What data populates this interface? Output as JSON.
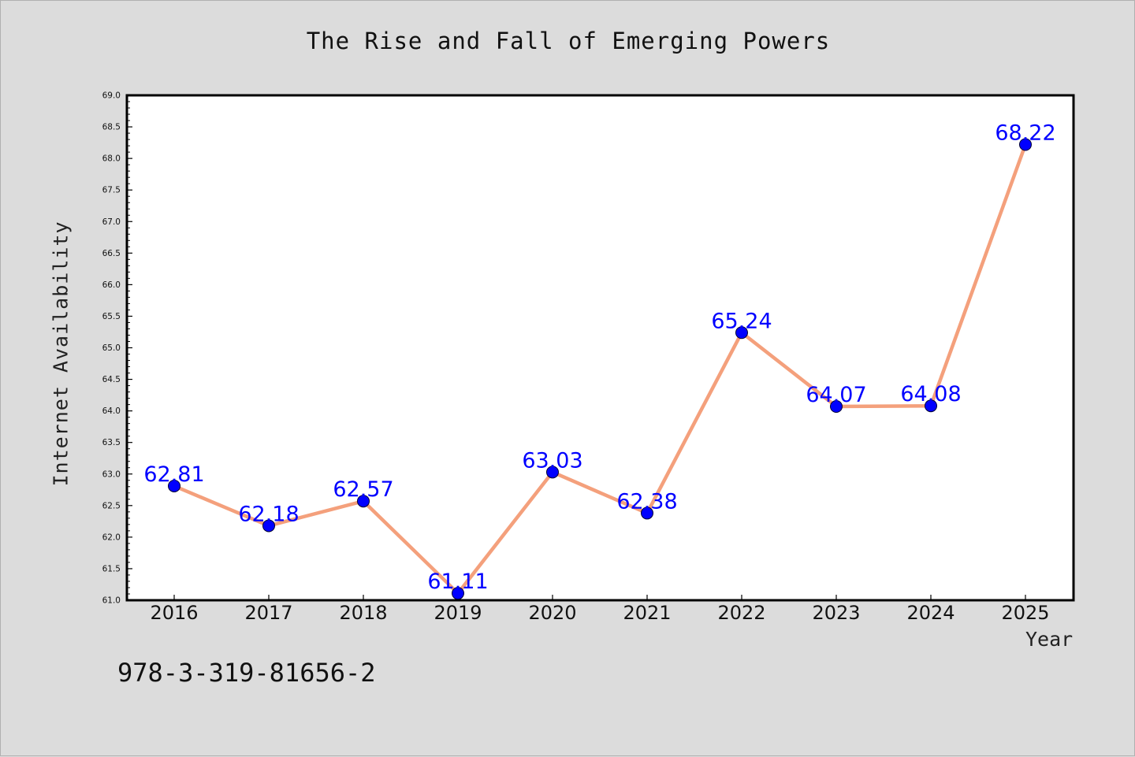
{
  "chart_data": {
    "type": "line",
    "title": "The Rise and Fall of Emerging Powers",
    "xlabel": "Year",
    "ylabel": "Internet Availability",
    "categories": [
      "2016",
      "2017",
      "2018",
      "2019",
      "2020",
      "2021",
      "2022",
      "2023",
      "2024",
      "2025"
    ],
    "series": [
      {
        "values": [
          62.81,
          62.18,
          62.57,
          61.11,
          63.03,
          62.38,
          65.24,
          64.07,
          64.08,
          68.22
        ],
        "color": "#f4a07c",
        "marker_color": "#0000ff"
      }
    ],
    "data_labels": [
      "62.81",
      "62.18",
      "62.57",
      "61.11",
      "63.03",
      "62.38",
      "65.24",
      "64.07",
      "64.08",
      "68.22"
    ],
    "ylim": [
      61.0,
      69.0
    ],
    "y_ticks": [
      "61.0",
      "61.5",
      "62.0",
      "62.5",
      "63.0",
      "63.5",
      "64.0",
      "64.5",
      "65.0",
      "65.5",
      "66.0",
      "66.5",
      "67.0",
      "67.5",
      "68.0",
      "68.5",
      "69.0"
    ],
    "grid": false,
    "label_color": "#0000ff"
  },
  "footer": {
    "isbn": "978-3-319-81656-2"
  }
}
